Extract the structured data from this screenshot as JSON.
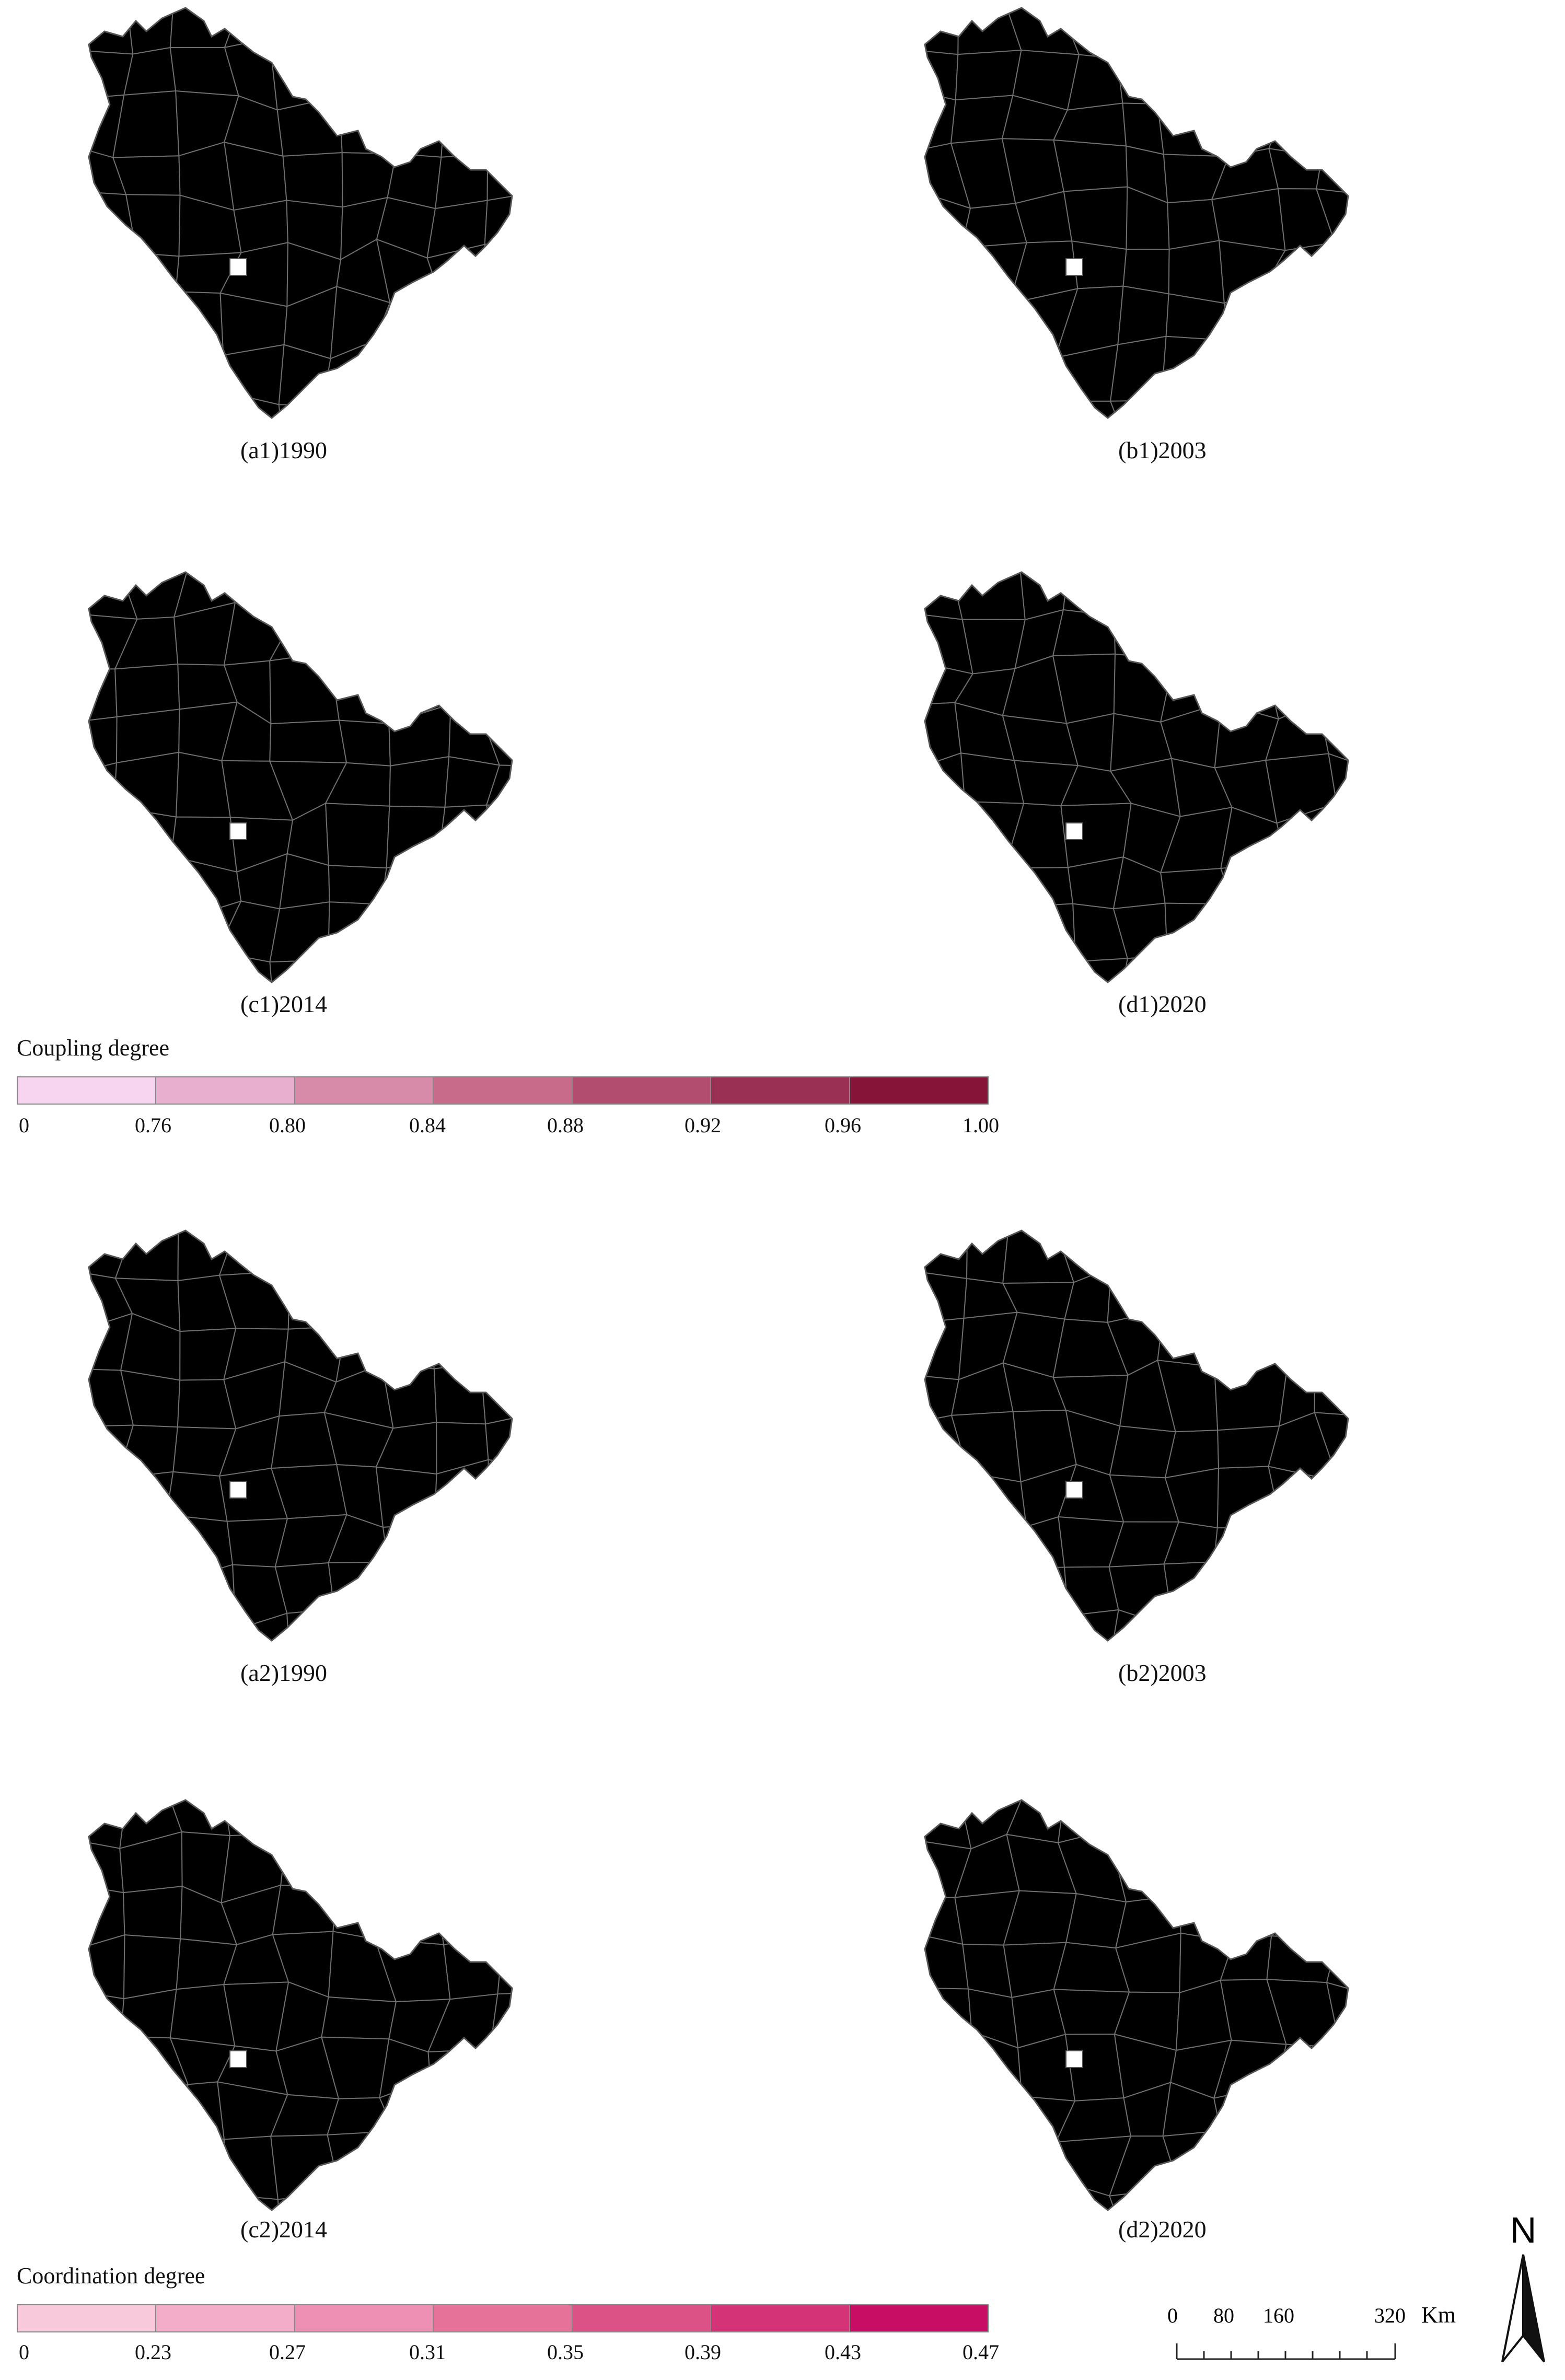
{
  "coupling_map": {
    "legend_title": "Coupling degree",
    "legend_ticks": [
      "0",
      "0.76",
      "0.80",
      "0.84",
      "0.88",
      "0.92",
      "0.96",
      "1.00"
    ],
    "legend_colors": [
      "#f7d4ef",
      "#e9afce",
      "#d88aa9",
      "#c86a8a",
      "#b24d6f",
      "#9a3054",
      "#861438"
    ],
    "panels": [
      {
        "caption": "(a1)1990"
      },
      {
        "caption": "(b1)2003"
      },
      {
        "caption": "(c1)2014"
      },
      {
        "caption": "(d1)2020"
      }
    ]
  },
  "coordination_map": {
    "legend_title": "Coordination degree",
    "legend_ticks": [
      "0",
      "0.23",
      "0.27",
      "0.31",
      "0.35",
      "0.39",
      "0.43",
      "0.47"
    ],
    "legend_colors": [
      "#f8c9db",
      "#f3adc8",
      "#ee90b3",
      "#e67299",
      "#dc5287",
      "#d43477",
      "#c80d65"
    ],
    "panels": [
      {
        "caption": "(a2)1990"
      },
      {
        "caption": "(b2)2003"
      },
      {
        "caption": "(c2)2014"
      },
      {
        "caption": "(d2)2020"
      }
    ]
  },
  "scale_bar": {
    "labels": [
      "0",
      "80",
      "160",
      "320"
    ],
    "unit": "Km"
  },
  "north_arrow": {
    "label": "N"
  }
}
